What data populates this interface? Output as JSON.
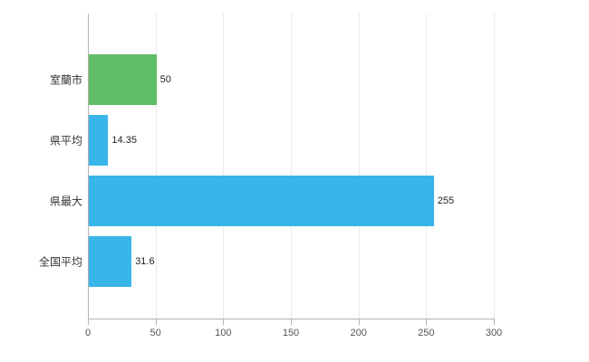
{
  "chart_data": {
    "type": "bar",
    "orientation": "horizontal",
    "title": "",
    "xlabel": "",
    "ylabel": "",
    "categories": [
      "室蘭市",
      "県平均",
      "県最大",
      "全国平均"
    ],
    "values": [
      50,
      14.35,
      255,
      31.6
    ],
    "value_labels": [
      "50",
      "14.35",
      "255",
      "31.6"
    ],
    "bar_colors": [
      "#61be68",
      "#38b6ea",
      "#38b6ea",
      "#38b6ea"
    ],
    "xlim": [
      0,
      300
    ],
    "x_ticks": [
      0,
      50,
      100,
      150,
      200,
      250,
      300
    ],
    "x_tick_labels": [
      "0",
      "50",
      "100",
      "150",
      "200",
      "250",
      "300"
    ],
    "grid": true,
    "legend_position": "none",
    "colors": {
      "grid": "#ebebeb",
      "axis": "#b3b3b3",
      "green_bar": "#61be68",
      "blue_bar": "#38b6ea"
    }
  }
}
